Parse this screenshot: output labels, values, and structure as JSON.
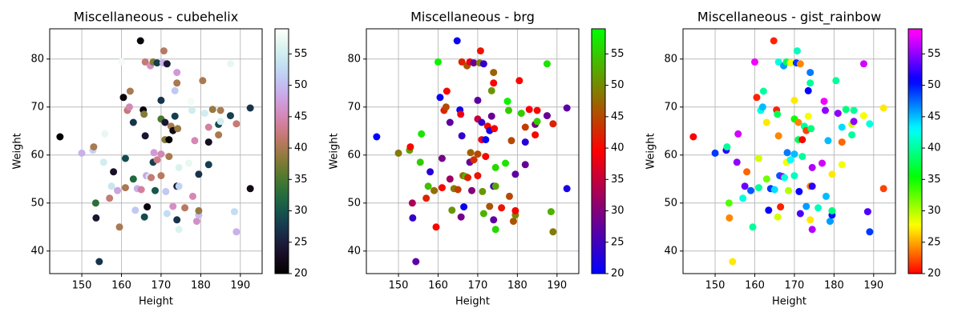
{
  "chart_data": [
    {
      "type": "scatter",
      "title": "Miscellaneous - cubehelix",
      "colormap": "cubehelix",
      "x_label": "Height",
      "y_label": "Weight",
      "x": [
        144.5,
        150,
        152.8,
        153,
        153.5,
        153.6,
        154.4,
        155.5,
        155.8,
        157,
        157.5,
        158,
        159,
        159.5,
        160,
        160.5,
        161,
        161,
        161.5,
        162,
        162.2,
        163,
        163,
        163.5,
        164,
        164.8,
        165,
        165.5,
        165.7,
        165.8,
        166,
        166,
        166.3,
        166.5,
        167,
        167.3,
        167.5,
        168,
        168,
        168.2,
        168.5,
        169,
        169,
        170,
        170,
        170,
        170,
        170.5,
        170.7,
        171,
        171,
        171.2,
        171.5,
        171.5,
        172,
        172,
        172.5,
        173,
        173,
        173.5,
        173.5,
        174,
        174,
        174,
        174,
        174.2,
        174.5,
        174.5,
        174.5,
        176,
        177,
        177.5,
        177.8,
        178,
        178.5,
        179,
        179.5,
        179.5,
        179.5,
        180.5,
        181,
        182,
        182,
        182,
        183,
        184.5,
        184.5,
        185,
        185,
        187.5,
        187.5,
        188.5,
        189,
        189,
        192.5,
        192.5
      ],
      "y": [
        63.8,
        60.4,
        61,
        61.7,
        50,
        46.9,
        37.8,
        58.5,
        64.4,
        51,
        53.5,
        56.5,
        52.6,
        45,
        79.4,
        72,
        53.2,
        59.3,
        69.3,
        70,
        73.3,
        55,
        66.8,
        48.5,
        53,
        83.8,
        52.8,
        69.4,
        68.5,
        47.1,
        64,
        79.4,
        55.7,
        49.2,
        55.5,
        78.6,
        55.3,
        58.5,
        79.4,
        60.5,
        52.6,
        79.2,
        59,
        67.5,
        71.4,
        55.7,
        60.2,
        79.2,
        81.7,
        63.2,
        66.8,
        52.4,
        79,
        47.8,
        59.7,
        63.2,
        66,
        49.3,
        65.1,
        68.1,
        73.4,
        75,
        77.2,
        46.5,
        53.5,
        65.5,
        44.5,
        53.5,
        57.4,
        49,
        58.3,
        71.2,
        69.3,
        51.4,
        63,
        46.2,
        47.5,
        48.4,
        56,
        75.5,
        68.7,
        62.7,
        58,
        65.8,
        69.5,
        64.2,
        66.4,
        69.3,
        67,
        79,
        68.2,
        48.2,
        66.5,
        44,
        69.8,
        53
      ],
      "c": [
        20,
        49,
        52,
        40,
        33,
        24,
        27,
        55,
        57,
        42,
        54,
        23,
        48,
        40,
        58,
        21,
        40,
        29,
        42,
        45,
        40,
        32,
        27,
        51,
        49,
        21,
        44,
        21,
        38,
        29,
        24,
        42,
        48,
        21,
        55,
        46,
        42,
        28,
        38,
        47,
        30,
        28,
        43,
        35,
        27,
        41,
        45,
        49,
        41,
        38,
        24,
        51,
        24,
        53,
        40,
        20,
        40,
        46,
        22,
        28,
        51,
        40,
        47,
        27,
        24,
        39,
        56,
        52,
        56,
        41,
        57,
        58,
        55,
        45,
        45,
        46,
        50,
        39,
        27,
        40,
        55,
        23,
        28,
        44,
        39,
        40,
        29,
        40,
        55,
        57,
        28,
        53,
        42,
        49,
        27,
        22
      ],
      "xlim": [
        141.9,
        195.5
      ],
      "ylim": [
        35.3,
        86.3
      ],
      "clim": [
        20,
        59
      ],
      "xticks": [
        150,
        160,
        170,
        180,
        190
      ],
      "yticks": [
        40,
        50,
        60,
        70,
        80
      ],
      "cticks": [
        20,
        25,
        30,
        35,
        40,
        45,
        50,
        55
      ],
      "grid": true
    },
    {
      "type": "scatter",
      "title": "Miscellaneous - brg",
      "colormap": "brg",
      "x_label": "Height",
      "y_label": "Weight",
      "x": [
        144.5,
        150,
        152.8,
        153,
        153.5,
        153.6,
        154.4,
        155.5,
        155.8,
        157,
        157.5,
        158,
        159,
        159.5,
        160,
        160.5,
        161,
        161,
        161.5,
        162,
        162.2,
        163,
        163,
        163.5,
        164,
        164.8,
        165,
        165.5,
        165.7,
        165.8,
        166,
        166,
        166.3,
        166.5,
        167,
        167.3,
        167.5,
        168,
        168,
        168.2,
        168.5,
        169,
        169,
        170,
        170,
        170,
        170,
        170.5,
        170.7,
        171,
        171,
        171.2,
        171.5,
        171.5,
        172,
        172,
        172.5,
        173,
        173,
        173.5,
        173.5,
        174,
        174,
        174,
        174,
        174.2,
        174.5,
        174.5,
        174.5,
        176,
        177,
        177.5,
        177.8,
        178,
        178.5,
        179,
        179.5,
        179.5,
        179.5,
        180.5,
        181,
        182,
        182,
        182,
        183,
        184.5,
        184.5,
        185,
        185,
        187.5,
        187.5,
        188.5,
        189,
        189,
        192.5,
        192.5
      ],
      "y": [
        63.8,
        60.4,
        61,
        61.7,
        50,
        46.9,
        37.8,
        58.5,
        64.4,
        51,
        53.5,
        56.5,
        52.6,
        45,
        79.4,
        72,
        53.2,
        59.3,
        69.3,
        70,
        73.3,
        55,
        66.8,
        48.5,
        53,
        83.8,
        52.8,
        69.4,
        68.5,
        47.1,
        64,
        79.4,
        55.7,
        49.2,
        55.5,
        78.6,
        55.3,
        58.5,
        79.4,
        60.5,
        52.6,
        79.2,
        59,
        67.5,
        71.4,
        55.7,
        60.2,
        79.2,
        81.7,
        63.2,
        66.8,
        52.4,
        79,
        47.8,
        59.7,
        63.2,
        66,
        49.3,
        65.1,
        68.1,
        73.4,
        75,
        77.2,
        46.5,
        53.5,
        65.5,
        44.5,
        53.5,
        57.4,
        49,
        58.3,
        71.2,
        69.3,
        51.4,
        63,
        46.2,
        47.5,
        48.4,
        56,
        75.5,
        68.7,
        62.7,
        58,
        65.8,
        69.5,
        64.2,
        66.4,
        69.3,
        67,
        79,
        68.2,
        48.2,
        66.5,
        44,
        69.8,
        53
      ],
      "c": [
        20,
        49,
        52,
        40,
        33,
        24,
        27,
        55,
        57,
        42,
        54,
        23,
        48,
        40,
        58,
        21,
        40,
        29,
        42,
        45,
        40,
        32,
        27,
        51,
        49,
        21,
        44,
        21,
        38,
        29,
        24,
        42,
        48,
        21,
        55,
        46,
        42,
        28,
        38,
        47,
        30,
        28,
        43,
        35,
        27,
        41,
        45,
        49,
        41,
        38,
        24,
        51,
        24,
        53,
        40,
        20,
        40,
        46,
        22,
        28,
        51,
        40,
        47,
        27,
        24,
        39,
        56,
        52,
        56,
        41,
        57,
        58,
        55,
        45,
        45,
        46,
        50,
        39,
        27,
        40,
        55,
        23,
        28,
        44,
        39,
        40,
        29,
        40,
        55,
        57,
        28,
        53,
        42,
        49,
        27,
        22
      ],
      "xlim": [
        141.9,
        195.5
      ],
      "ylim": [
        35.3,
        86.3
      ],
      "clim": [
        20,
        59
      ],
      "xticks": [
        150,
        160,
        170,
        180,
        190
      ],
      "yticks": [
        40,
        50,
        60,
        70,
        80
      ],
      "cticks": [
        20,
        25,
        30,
        35,
        40,
        45,
        50,
        55
      ],
      "grid": true
    },
    {
      "type": "scatter",
      "title": "Miscellaneous - gist_rainbow",
      "colormap": "gist_rainbow",
      "x_label": "Height",
      "y_label": "Weight",
      "x": [
        144.5,
        150,
        152.8,
        153,
        153.5,
        153.6,
        154.4,
        155.5,
        155.8,
        157,
        157.5,
        158,
        159,
        159.5,
        160,
        160.5,
        161,
        161,
        161.5,
        162,
        162.2,
        163,
        163,
        163.5,
        164,
        164.8,
        165,
        165.5,
        165.7,
        165.8,
        166,
        166,
        166.3,
        166.5,
        167,
        167.3,
        167.5,
        168,
        168,
        168.2,
        168.5,
        169,
        169,
        170,
        170,
        170,
        170,
        170.5,
        170.7,
        171,
        171,
        171.2,
        171.5,
        171.5,
        172,
        172,
        172.5,
        173,
        173,
        173.5,
        173.5,
        174,
        174,
        174,
        174,
        174.2,
        174.5,
        174.5,
        174.5,
        176,
        177,
        177.5,
        177.8,
        178,
        178.5,
        179,
        179.5,
        179.5,
        179.5,
        180.5,
        181,
        182,
        182,
        182,
        183,
        184.5,
        184.5,
        185,
        185,
        187.5,
        187.5,
        188.5,
        189,
        189,
        192.5,
        192.5
      ],
      "y": [
        63.8,
        60.4,
        61,
        61.7,
        50,
        46.9,
        37.8,
        58.5,
        64.4,
        51,
        53.5,
        56.5,
        52.6,
        45,
        79.4,
        72,
        53.2,
        59.3,
        69.3,
        70,
        73.3,
        55,
        66.8,
        48.5,
        53,
        83.8,
        52.8,
        69.4,
        68.5,
        47.1,
        64,
        79.4,
        55.7,
        49.2,
        55.5,
        78.6,
        55.3,
        58.5,
        79.4,
        60.5,
        52.6,
        79.2,
        59,
        67.5,
        71.4,
        55.7,
        60.2,
        79.2,
        81.7,
        63.2,
        66.8,
        52.4,
        79,
        47.8,
        59.7,
        63.2,
        66,
        49.3,
        65.1,
        68.1,
        73.4,
        75,
        77.2,
        46.5,
        53.5,
        65.5,
        44.5,
        53.5,
        57.4,
        49,
        58.3,
        71.2,
        69.3,
        51.4,
        63,
        46.2,
        47.5,
        48.4,
        56,
        75.5,
        68.7,
        62.7,
        58,
        65.8,
        69.5,
        64.2,
        66.4,
        69.3,
        67,
        79,
        68.2,
        48.2,
        66.5,
        44,
        69.8,
        53
      ],
      "c": [
        20,
        49,
        52,
        40,
        33,
        24,
        27,
        55,
        57,
        42,
        54,
        23,
        48,
        40,
        58,
        21,
        40,
        29,
        42,
        45,
        40,
        32,
        27,
        51,
        49,
        21,
        44,
        21,
        38,
        29,
        24,
        42,
        48,
        21,
        55,
        46,
        42,
        28,
        38,
        47,
        30,
        28,
        43,
        35,
        27,
        41,
        45,
        49,
        41,
        38,
        24,
        51,
        24,
        53,
        40,
        20,
        40,
        46,
        22,
        28,
        51,
        40,
        47,
        27,
        24,
        39,
        56,
        52,
        56,
        41,
        57,
        58,
        55,
        45,
        45,
        46,
        50,
        39,
        27,
        40,
        55,
        23,
        28,
        44,
        39,
        40,
        29,
        40,
        55,
        57,
        28,
        53,
        42,
        49,
        27,
        22
      ],
      "xlim": [
        141.9,
        195.5
      ],
      "ylim": [
        35.3,
        86.3
      ],
      "clim": [
        20,
        59
      ],
      "xticks": [
        150,
        160,
        170,
        180,
        190
      ],
      "yticks": [
        40,
        50,
        60,
        70,
        80
      ],
      "cticks": [
        20,
        25,
        30,
        35,
        40,
        45,
        50,
        55
      ],
      "grid": true
    }
  ]
}
